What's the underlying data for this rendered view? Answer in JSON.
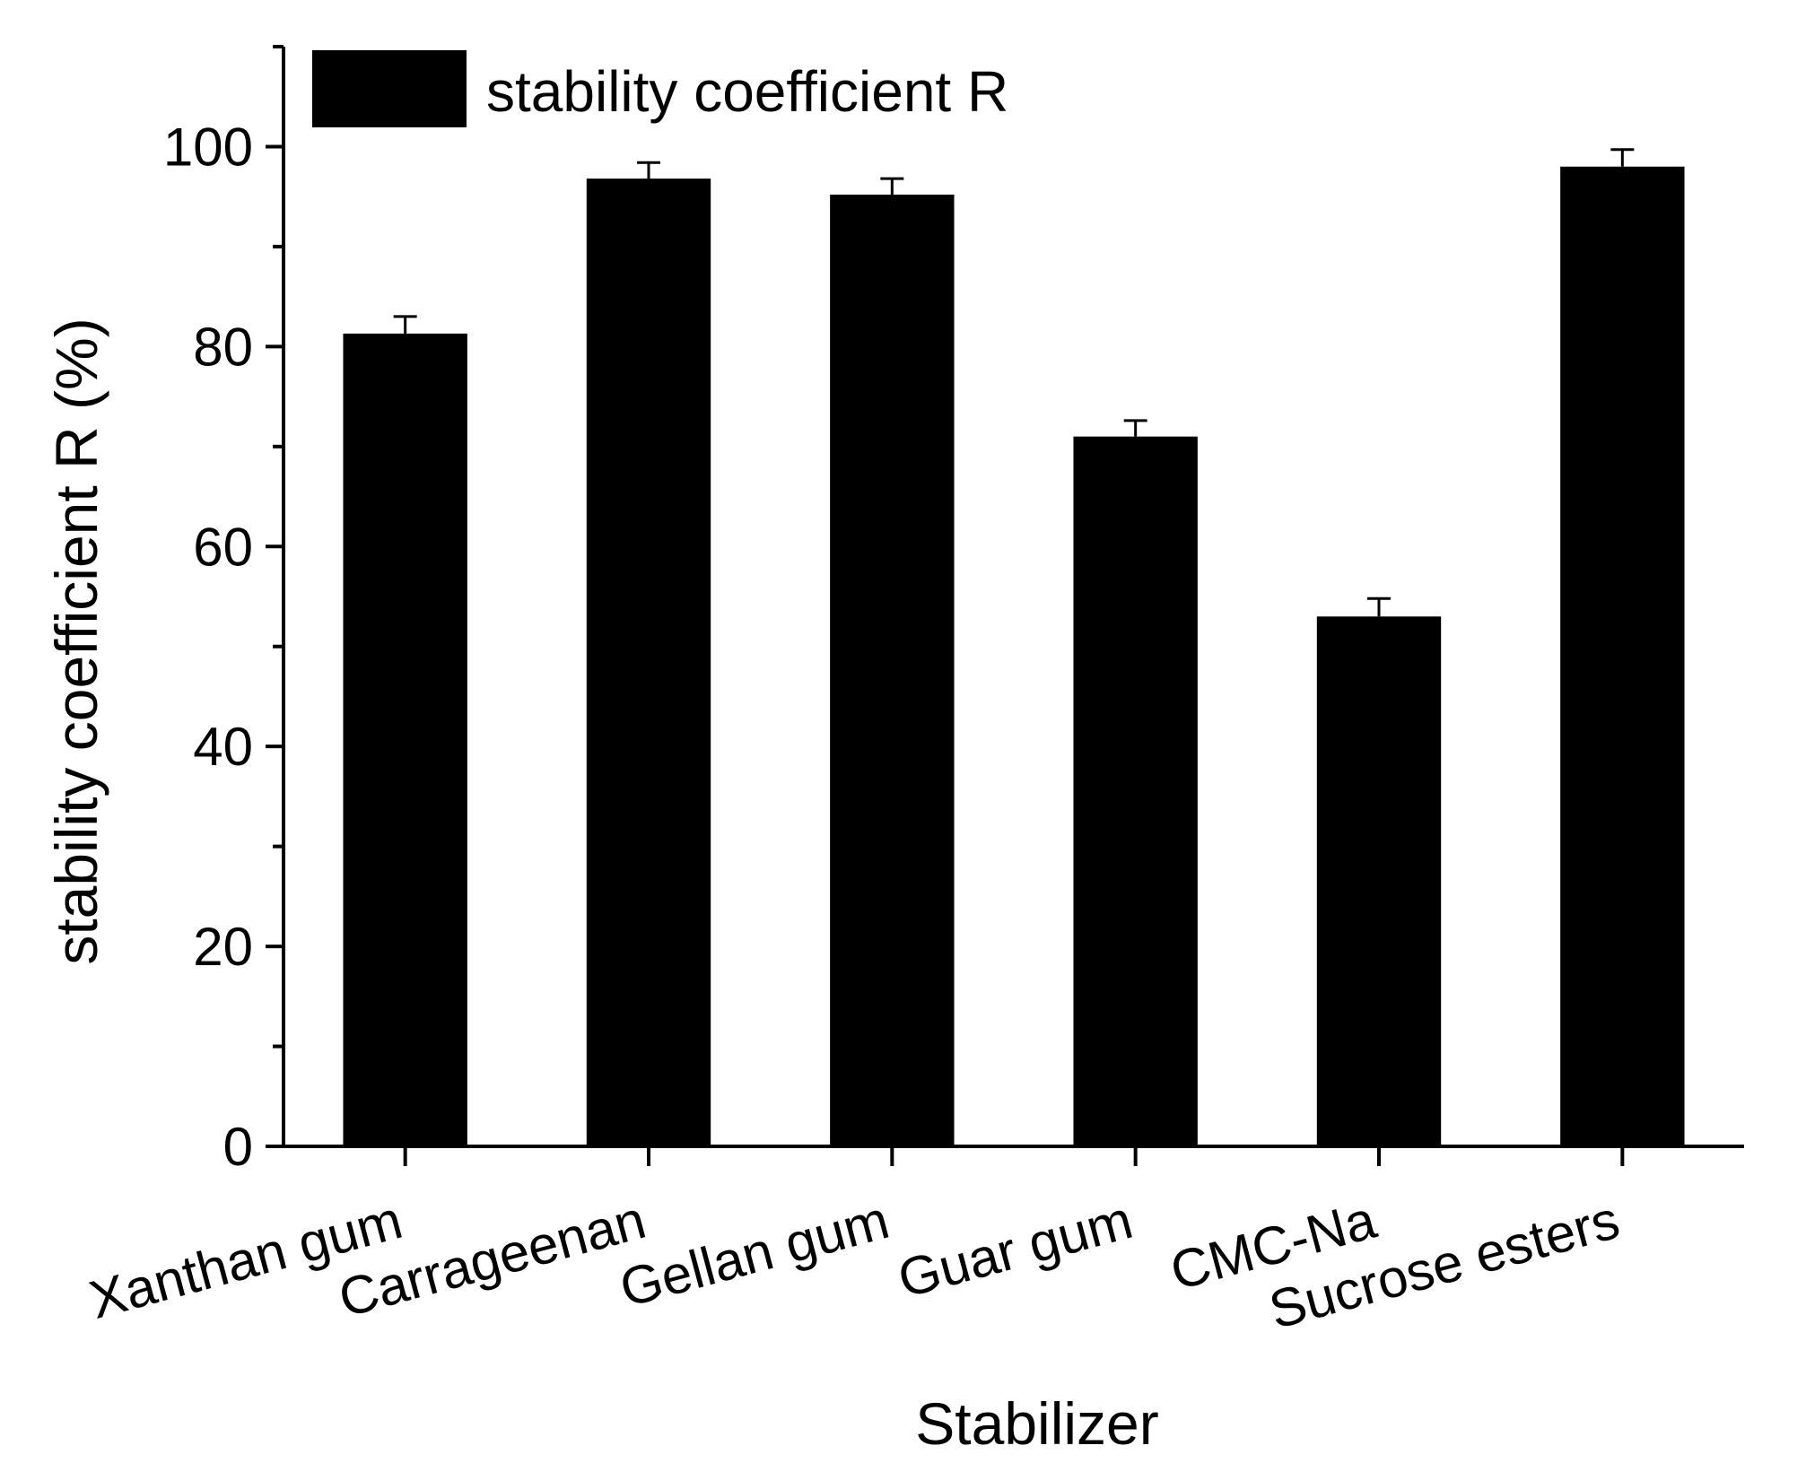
{
  "chart_data": {
    "type": "bar",
    "title": "",
    "xlabel": "Stabilizer",
    "ylabel": "stability coefficient R (%)",
    "categories": [
      "Xanthan gum",
      "Carrageenan",
      "Gellan gum",
      "Guar gum",
      "CMC-Na",
      "Sucrose esters"
    ],
    "series": [
      {
        "name": "stability coefficient R",
        "values": [
          81.3,
          96.8,
          95.2,
          71.0,
          53.0,
          98.0
        ],
        "errors": [
          1.7,
          1.6,
          1.6,
          1.6,
          1.8,
          1.7
        ],
        "color": "#000000"
      }
    ],
    "ylim": [
      0,
      110
    ],
    "yticks": [
      0,
      20,
      40,
      60,
      80,
      100
    ],
    "y_minor_step": 10,
    "grid": false,
    "legend": "top-left",
    "x_tick_label_rotation": -15
  }
}
